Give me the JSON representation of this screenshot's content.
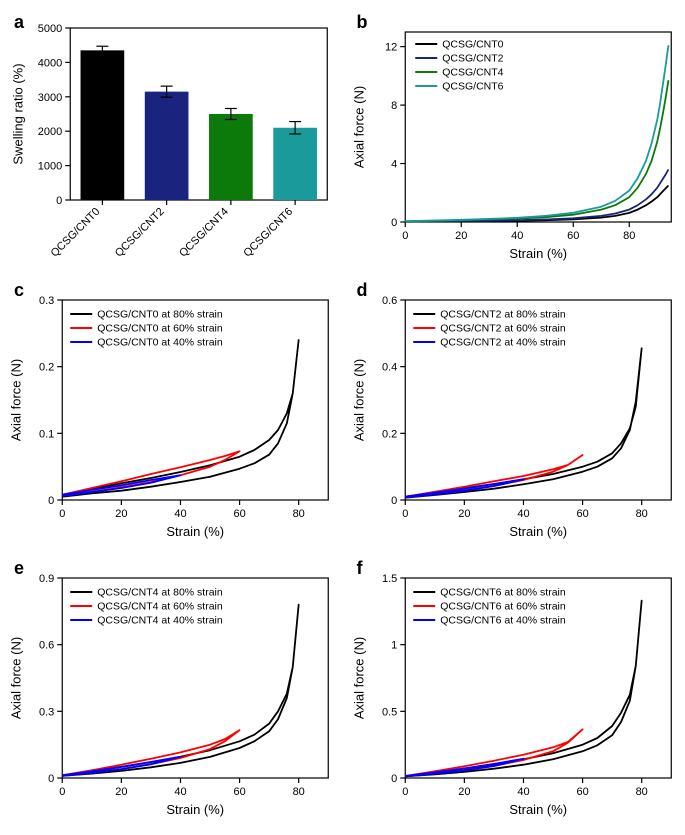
{
  "figure": {
    "background_color": "#ffffff",
    "font_family": "Arial",
    "panels": {
      "a": {
        "label": "a",
        "type": "bar",
        "ylabel": "Swelling ratio (%)",
        "label_fontsize": 13,
        "tick_fontsize": 11,
        "ylim": [
          0,
          5000
        ],
        "ytick_step": 1000,
        "yticks": [
          0,
          1000,
          2000,
          3000,
          4000,
          5000
        ],
        "categories": [
          "QCSG/CNT0",
          "QCSG/CNT2",
          "QCSG/CNT4",
          "QCSG/CNT6"
        ],
        "values": [
          4350,
          3150,
          2500,
          2100
        ],
        "errors": [
          120,
          160,
          160,
          180
        ],
        "bar_colors": [
          "#000000",
          "#1a237e",
          "#0b7a0b",
          "#1a9a9a"
        ],
        "bar_width": 0.68,
        "x_rotation_deg": -45
      },
      "b": {
        "label": "b",
        "type": "line",
        "xlabel": "Strain (%)",
        "ylabel": "Axial force (N)",
        "label_fontsize": 13,
        "xlim": [
          0,
          95
        ],
        "xticks": [
          0,
          20,
          40,
          60,
          80
        ],
        "ylim": [
          0,
          13
        ],
        "yticks": [
          0,
          4,
          8,
          12
        ],
        "grid": false,
        "series": [
          {
            "name": "QCSG/CNT0",
            "color": "#000000",
            "x": [
              0,
              10,
              20,
              30,
              40,
              50,
              60,
              70,
              75,
              80,
              83,
              86,
              88,
              90,
              91,
              92,
              93,
              94
            ],
            "y": [
              0.02,
              0.04,
              0.05,
              0.07,
              0.09,
              0.12,
              0.18,
              0.3,
              0.42,
              0.62,
              0.85,
              1.15,
              1.4,
              1.7,
              1.9,
              2.1,
              2.3,
              2.5
            ]
          },
          {
            "name": "QCSG/CNT2",
            "color": "#1a237e",
            "x": [
              0,
              10,
              20,
              30,
              40,
              50,
              60,
              70,
              75,
              80,
              83,
              86,
              88,
              90,
              91,
              92,
              93,
              94
            ],
            "y": [
              0.03,
              0.05,
              0.07,
              0.09,
              0.12,
              0.17,
              0.25,
              0.42,
              0.58,
              0.85,
              1.15,
              1.55,
              1.9,
              2.35,
              2.65,
              2.95,
              3.25,
              3.6
            ]
          },
          {
            "name": "QCSG/CNT4",
            "color": "#0b7a0b",
            "x": [
              0,
              10,
              20,
              30,
              40,
              50,
              60,
              70,
              75,
              80,
              83,
              86,
              88,
              90,
              91,
              92,
              93,
              94
            ],
            "y": [
              0.05,
              0.08,
              0.12,
              0.17,
              0.23,
              0.33,
              0.5,
              0.85,
              1.15,
              1.7,
              2.35,
              3.3,
              4.2,
              5.5,
              6.4,
              7.4,
              8.5,
              9.7
            ]
          },
          {
            "name": "QCSG/CNT6",
            "color": "#1a9a9a",
            "x": [
              0,
              10,
              20,
              30,
              40,
              50,
              60,
              70,
              75,
              80,
              83,
              86,
              88,
              90,
              91,
              92,
              93,
              94
            ],
            "y": [
              0.06,
              0.1,
              0.15,
              0.21,
              0.29,
              0.42,
              0.63,
              1.05,
              1.45,
              2.15,
              3.0,
              4.2,
              5.4,
              7.0,
              8.1,
              9.4,
              10.7,
              12.1
            ]
          }
        ]
      },
      "c": {
        "label": "c",
        "type": "line",
        "xlabel": "Strain (%)",
        "ylabel": "Axial force (N)",
        "xlim": [
          0,
          90
        ],
        "xticks": [
          0,
          20,
          40,
          60,
          80
        ],
        "ylim": [
          0,
          0.3
        ],
        "yticks": [
          0,
          0.1,
          0.2,
          0.3
        ],
        "series": [
          {
            "name": "QCSG/CNT0 at 80% strain",
            "color": "#000000",
            "x": [
              0,
              10,
              20,
              30,
              40,
              50,
              60,
              65,
              70,
              73,
              76,
              78,
              80,
              78,
              76,
              73,
              70,
              65,
              60,
              50,
              40,
              30,
              20,
              10,
              0
            ],
            "y": [
              0.008,
              0.016,
              0.025,
              0.033,
              0.042,
              0.052,
              0.065,
              0.075,
              0.09,
              0.105,
              0.13,
              0.16,
              0.24,
              0.16,
              0.115,
              0.085,
              0.068,
              0.055,
              0.047,
              0.035,
              0.027,
              0.02,
              0.014,
              0.01,
              0.005
            ]
          },
          {
            "name": "QCSG/CNT0 at 60% strain",
            "color": "#ff0000",
            "x": [
              0,
              10,
              20,
              30,
              40,
              50,
              55,
              60,
              55,
              50,
              40,
              30,
              20,
              10,
              0
            ],
            "y": [
              0.008,
              0.018,
              0.028,
              0.039,
              0.049,
              0.06,
              0.066,
              0.073,
              0.06,
              0.05,
              0.037,
              0.027,
              0.019,
              0.012,
              0.006
            ]
          },
          {
            "name": "QCSG/CNT0 at 40% strain",
            "color": "#0000ff",
            "x": [
              0,
              10,
              20,
              30,
              40,
              30,
              20,
              10,
              0
            ],
            "y": [
              0.008,
              0.015,
              0.022,
              0.03,
              0.037,
              0.026,
              0.018,
              0.012,
              0.006
            ]
          }
        ]
      },
      "d": {
        "label": "d",
        "type": "line",
        "xlabel": "Strain (%)",
        "ylabel": "Axial force (N)",
        "xlim": [
          0,
          90
        ],
        "xticks": [
          0,
          20,
          40,
          60,
          80
        ],
        "ylim": [
          0,
          0.6
        ],
        "yticks": [
          0,
          0.2,
          0.4,
          0.6
        ],
        "series": [
          {
            "name": "QCSG/CNT2 at 80% strain",
            "color": "#000000",
            "x": [
              0,
              10,
              20,
              30,
              40,
              50,
              60,
              65,
              70,
              73,
              76,
              78,
              80,
              78,
              76,
              73,
              70,
              65,
              60,
              50,
              40,
              30,
              20,
              10,
              0
            ],
            "y": [
              0.01,
              0.022,
              0.035,
              0.048,
              0.062,
              0.078,
              0.1,
              0.115,
              0.14,
              0.17,
              0.215,
              0.28,
              0.455,
              0.295,
              0.21,
              0.155,
              0.125,
              0.1,
              0.085,
              0.062,
              0.047,
              0.034,
              0.024,
              0.015,
              0.007
            ]
          },
          {
            "name": "QCSG/CNT2 at 60% strain",
            "color": "#ff0000",
            "x": [
              0,
              10,
              20,
              30,
              40,
              50,
              55,
              60,
              55,
              50,
              40,
              30,
              20,
              10,
              0
            ],
            "y": [
              0.01,
              0.025,
              0.04,
              0.056,
              0.072,
              0.092,
              0.105,
              0.135,
              0.105,
              0.085,
              0.06,
              0.042,
              0.028,
              0.017,
              0.008
            ]
          },
          {
            "name": "QCSG/CNT2 at 40% strain",
            "color": "#0000ff",
            "x": [
              0,
              10,
              20,
              30,
              40,
              30,
              20,
              10,
              0
            ],
            "y": [
              0.01,
              0.022,
              0.034,
              0.048,
              0.062,
              0.042,
              0.028,
              0.017,
              0.008
            ]
          }
        ]
      },
      "e": {
        "label": "e",
        "type": "line",
        "xlabel": "Strain (%)",
        "ylabel": "Axial force (N)",
        "xlim": [
          0,
          90
        ],
        "xticks": [
          0,
          20,
          40,
          60,
          80
        ],
        "ylim": [
          0,
          0.9
        ],
        "yticks": [
          0,
          0.3,
          0.6,
          0.9
        ],
        "series": [
          {
            "name": "QCSG/CNT4 at 80% strain",
            "color": "#000000",
            "x": [
              0,
              10,
              20,
              30,
              40,
              50,
              60,
              65,
              70,
              73,
              76,
              78,
              80,
              78,
              76,
              73,
              70,
              65,
              60,
              50,
              40,
              30,
              20,
              10,
              0
            ],
            "y": [
              0.012,
              0.03,
              0.05,
              0.072,
              0.096,
              0.125,
              0.165,
              0.195,
              0.245,
              0.3,
              0.38,
              0.5,
              0.78,
              0.5,
              0.36,
              0.265,
              0.21,
              0.165,
              0.135,
              0.095,
              0.068,
              0.048,
              0.032,
              0.02,
              0.01
            ]
          },
          {
            "name": "QCSG/CNT4 at 60% strain",
            "color": "#ff0000",
            "x": [
              0,
              10,
              20,
              30,
              40,
              50,
              55,
              60,
              55,
              50,
              40,
              30,
              20,
              10,
              0
            ],
            "y": [
              0.012,
              0.035,
              0.06,
              0.087,
              0.115,
              0.15,
              0.175,
              0.215,
              0.165,
              0.13,
              0.09,
              0.062,
              0.04,
              0.024,
              0.01
            ]
          },
          {
            "name": "QCSG/CNT4 at 40% strain",
            "color": "#0000ff",
            "x": [
              0,
              10,
              20,
              30,
              40,
              30,
              20,
              10,
              0
            ],
            "y": [
              0.012,
              0.03,
              0.05,
              0.072,
              0.096,
              0.062,
              0.04,
              0.024,
              0.01
            ]
          }
        ]
      },
      "f": {
        "label": "f",
        "type": "line",
        "xlabel": "Strain (%)",
        "ylabel": "Axial force (N)",
        "xlim": [
          0,
          90
        ],
        "xticks": [
          0,
          20,
          40,
          60,
          80
        ],
        "ylim": [
          0,
          1.5
        ],
        "yticks": [
          0,
          0.5,
          1.0,
          1.5
        ],
        "series": [
          {
            "name": "QCSG/CNT6 at 80% strain",
            "color": "#000000",
            "x": [
              0,
              10,
              20,
              30,
              40,
              50,
              60,
              65,
              70,
              73,
              76,
              78,
              80,
              78,
              76,
              73,
              70,
              65,
              60,
              50,
              40,
              30,
              20,
              10,
              0
            ],
            "y": [
              0.015,
              0.04,
              0.07,
              0.103,
              0.14,
              0.185,
              0.25,
              0.3,
              0.39,
              0.49,
              0.625,
              0.84,
              1.33,
              0.84,
              0.58,
              0.42,
              0.32,
              0.245,
              0.2,
              0.14,
              0.1,
              0.07,
              0.046,
              0.028,
              0.012
            ]
          },
          {
            "name": "QCSG/CNT6 at 60% strain",
            "color": "#ff0000",
            "x": [
              0,
              10,
              20,
              30,
              40,
              50,
              55,
              60,
              55,
              50,
              40,
              30,
              20,
              10,
              0
            ],
            "y": [
              0.015,
              0.05,
              0.088,
              0.13,
              0.175,
              0.23,
              0.27,
              0.365,
              0.265,
              0.2,
              0.135,
              0.09,
              0.058,
              0.033,
              0.012
            ]
          },
          {
            "name": "QCSG/CNT6 at 40% strain",
            "color": "#0000ff",
            "x": [
              0,
              10,
              20,
              30,
              40,
              30,
              20,
              10,
              0
            ],
            "y": [
              0.015,
              0.042,
              0.072,
              0.106,
              0.145,
              0.09,
              0.056,
              0.032,
              0.012
            ]
          }
        ]
      }
    }
  }
}
